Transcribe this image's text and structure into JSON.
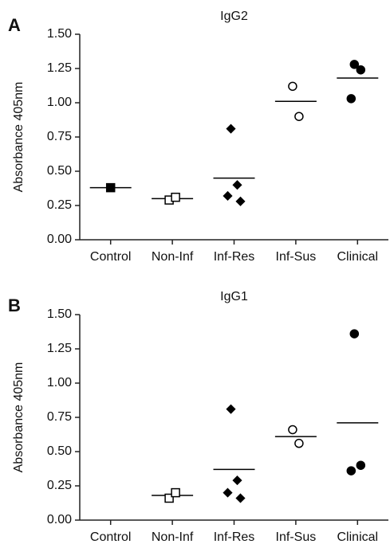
{
  "chart_data": [
    {
      "type": "dot",
      "panel": "A",
      "title": "IgG2",
      "ylabel": "Absorbance 405nm",
      "categories": [
        "Control",
        "Non-Inf",
        "Inf-Res",
        "Inf-Sus",
        "Clinical"
      ],
      "groups": [
        {
          "values": [
            0.38
          ],
          "mean": 0.38,
          "marker": "square",
          "filled": true
        },
        {
          "values": [
            0.29,
            0.31
          ],
          "mean": 0.3,
          "marker": "square",
          "filled": false
        },
        {
          "values": [
            0.81,
            0.4,
            0.32,
            0.28
          ],
          "mean": 0.45,
          "marker": "diamond",
          "filled": true
        },
        {
          "values": [
            1.12,
            0.9
          ],
          "mean": 1.01,
          "marker": "circle",
          "filled": false
        },
        {
          "values": [
            1.28,
            1.24,
            1.03
          ],
          "mean": 1.18,
          "marker": "circle",
          "filled": true
        }
      ],
      "color": "#000000",
      "ylim": [
        0,
        1.5
      ],
      "yticks": [
        {
          "value": 0,
          "label": "0.00"
        },
        0.25,
        {
          "value": 0.5,
          "label": "0.50"
        },
        0.75,
        {
          "value": 1,
          "label": "1.00"
        },
        1.25,
        {
          "value": 1.5,
          "label": "1.50"
        }
      ]
    },
    {
      "type": "dot",
      "panel": "B",
      "title": "IgG1",
      "ylabel": "Absorbance 405nm",
      "categories": [
        "Control",
        "Non-Inf",
        "Inf-Res",
        "Inf-Sus",
        "Clinical"
      ],
      "groups": [
        {
          "values": [],
          "mean": null,
          "marker": "square",
          "filled": true
        },
        {
          "values": [
            0.16,
            0.2
          ],
          "mean": 0.18,
          "marker": "square",
          "filled": false
        },
        {
          "values": [
            0.81,
            0.29,
            0.2,
            0.16
          ],
          "mean": 0.37,
          "marker": "diamond",
          "filled": true
        },
        {
          "values": [
            0.66,
            0.56
          ],
          "mean": 0.61,
          "marker": "circle",
          "filled": false
        },
        {
          "values": [
            1.36,
            0.4,
            0.36
          ],
          "mean": 0.71,
          "marker": "circle",
          "filled": true
        }
      ],
      "color": "#000000",
      "ylim": [
        0,
        1.5
      ],
      "yticks": [
        {
          "value": 0,
          "label": "0.00"
        },
        0.25,
        {
          "value": 0.5,
          "label": "0.50"
        },
        0.75,
        {
          "value": 1,
          "label": "1.00"
        },
        1.25,
        {
          "value": 1.5,
          "label": "1.50"
        }
      ]
    }
  ]
}
